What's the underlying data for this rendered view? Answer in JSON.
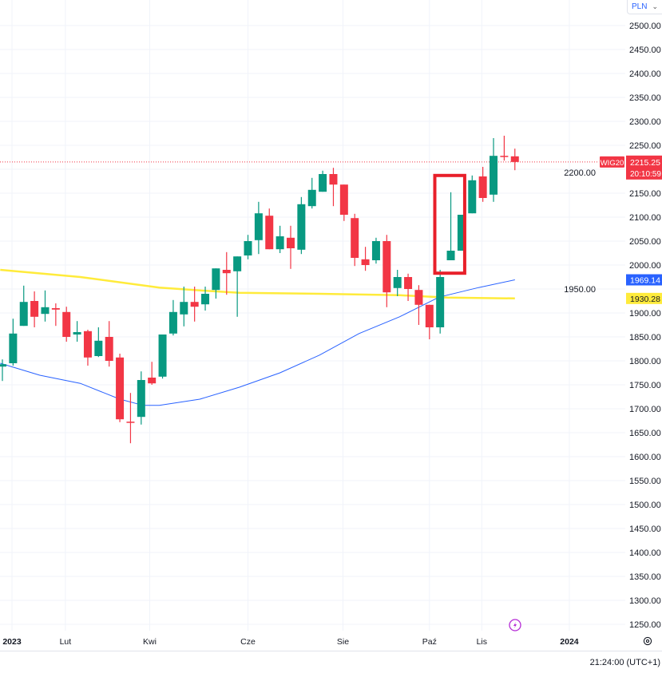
{
  "header": {
    "currency": "PLN"
  },
  "footer": {
    "time": "21:24:00 (UTC+1)"
  },
  "chart_data": {
    "type": "candlestick",
    "symbol": "WIG20",
    "interval": "weekly",
    "last_price": "2215.25",
    "countdown": "20:10:59",
    "ylim": [
      1225,
      2525
    ],
    "y_ticks": [
      "2500.00",
      "2450.00",
      "2400.00",
      "2350.00",
      "2300.00",
      "2250.00",
      "2200.00",
      "2150.00",
      "2100.00",
      "2050.00",
      "2000.00",
      "1950.00",
      "1900.00",
      "1850.00",
      "1800.00",
      "1750.00",
      "1700.00",
      "1650.00",
      "1600.00",
      "1550.00",
      "1500.00",
      "1450.00",
      "1400.00",
      "1350.00",
      "1300.00",
      "1250.00"
    ],
    "x_ticks": [
      {
        "label": "2023",
        "index": 0.9,
        "bold": true
      },
      {
        "label": "Lut",
        "index": 5.9
      },
      {
        "label": "Kwi",
        "index": 13.8
      },
      {
        "label": "Cze",
        "index": 23
      },
      {
        "label": "Sie",
        "index": 31.9
      },
      {
        "label": "Paź",
        "index": 40
      },
      {
        "label": "Lis",
        "index": 44.9
      },
      {
        "label": "2024",
        "index": 53.1,
        "bold": true
      }
    ],
    "candles": [
      [
        1788,
        1803,
        1758,
        1793
      ],
      [
        1795,
        1888,
        1790,
        1857
      ],
      [
        1873,
        1957,
        1873,
        1923
      ],
      [
        1925,
        1945,
        1870,
        1892
      ],
      [
        1898,
        1947,
        1882,
        1912
      ],
      [
        1910,
        1920,
        1873,
        1907
      ],
      [
        1902,
        1913,
        1840,
        1850
      ],
      [
        1855,
        1883,
        1840,
        1860
      ],
      [
        1862,
        1865,
        1790,
        1807
      ],
      [
        1810,
        1870,
        1808,
        1842
      ],
      [
        1850,
        1883,
        1788,
        1800
      ],
      [
        1807,
        1815,
        1672,
        1678
      ],
      [
        1673,
        1733,
        1628,
        1672
      ],
      [
        1683,
        1778,
        1667,
        1760
      ],
      [
        1765,
        1798,
        1750,
        1753
      ],
      [
        1767,
        1855,
        1763,
        1855
      ],
      [
        1857,
        1927,
        1853,
        1902
      ],
      [
        1897,
        1955,
        1872,
        1923
      ],
      [
        1923,
        1955,
        1882,
        1913
      ],
      [
        1918,
        1955,
        1905,
        1940
      ],
      [
        1948,
        1993,
        1930,
        1993
      ],
      [
        1990,
        2027,
        1938,
        1983
      ],
      [
        1987,
        2018,
        1892,
        2018
      ],
      [
        2020,
        2063,
        2012,
        2050
      ],
      [
        2052,
        2132,
        2023,
        2108
      ],
      [
        2103,
        2118,
        2033,
        2033
      ],
      [
        2033,
        2082,
        2025,
        2060
      ],
      [
        2057,
        2082,
        1992,
        2035
      ],
      [
        2032,
        2142,
        2023,
        2127
      ],
      [
        2123,
        2182,
        2118,
        2157
      ],
      [
        2153,
        2197,
        2153,
        2190
      ],
      [
        2190,
        2203,
        2123,
        2168
      ],
      [
        2168,
        2168,
        2092,
        2105
      ],
      [
        2098,
        2107,
        1998,
        2015
      ],
      [
        2012,
        2038,
        1988,
        2000
      ],
      [
        2010,
        2057,
        2003,
        2050
      ],
      [
        2050,
        2063,
        1912,
        1943
      ],
      [
        1952,
        1990,
        1935,
        1975
      ],
      [
        1975,
        1982,
        1925,
        1950
      ],
      [
        1948,
        1958,
        1875,
        1917
      ],
      [
        1917,
        1917,
        1845,
        1870
      ],
      [
        1870,
        1990,
        1857,
        1975
      ],
      [
        2010,
        2152,
        2010,
        2030
      ],
      [
        2030,
        2105,
        2030,
        2105
      ],
      [
        2108,
        2187,
        2108,
        2177
      ],
      [
        2185,
        2205,
        2132,
        2140
      ],
      [
        2147,
        2265,
        2132,
        2228
      ],
      [
        2228,
        2270,
        2218,
        2227
      ],
      [
        2227,
        2243,
        2198,
        2215.25
      ]
    ],
    "candle_format": [
      "open",
      "high",
      "low",
      "close"
    ],
    "series": [
      {
        "name": "MA-blue",
        "value_label": "1969.14",
        "color": "#2962ff",
        "points": [
          [
            -0.2,
            1795
          ],
          [
            3.5,
            1770
          ],
          [
            7.3,
            1753
          ],
          [
            11,
            1720
          ],
          [
            13.2,
            1707
          ],
          [
            14.7,
            1707
          ],
          [
            18.5,
            1720
          ],
          [
            22.2,
            1745
          ],
          [
            26,
            1775
          ],
          [
            29.7,
            1812
          ],
          [
            33.4,
            1857
          ],
          [
            37.2,
            1892
          ],
          [
            40.9,
            1933
          ],
          [
            44.6,
            1953
          ],
          [
            48,
            1969.14
          ]
        ]
      },
      {
        "name": "MA-yellow",
        "value_label": "1930.28",
        "color": "#ffeb3b",
        "points": [
          [
            -0.2,
            1990
          ],
          [
            7.3,
            1975
          ],
          [
            14.7,
            1953
          ],
          [
            18.5,
            1947
          ],
          [
            22.2,
            1942
          ],
          [
            29.7,
            1940
          ],
          [
            37.2,
            1937
          ],
          [
            41.7,
            1932
          ],
          [
            48,
            1930.28
          ]
        ]
      }
    ],
    "annotations": [
      {
        "type": "rectangle",
        "color": "#e8202a",
        "index_range": [
          40.5,
          43.3
        ],
        "price_range": [
          1983,
          2187
        ]
      }
    ],
    "colors": {
      "up": "#089981",
      "down": "#f23645",
      "grid": "#f0f3fa",
      "text": "#131722",
      "event": "#b52bd6"
    }
  }
}
